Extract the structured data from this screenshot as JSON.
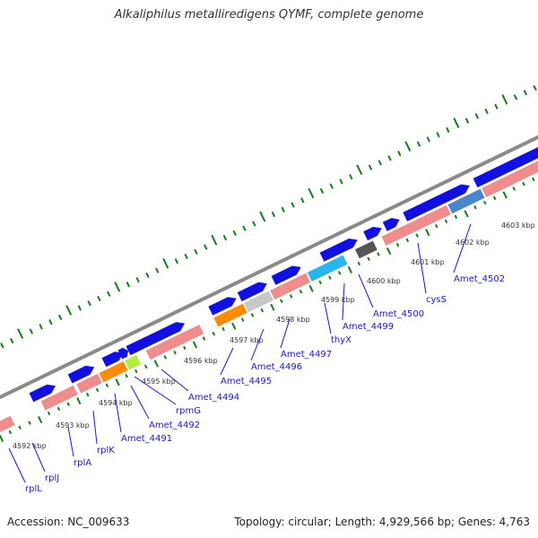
{
  "title": "Alkaliphilus metalliredigens QYMF, complete genome",
  "footer": {
    "accession": "Accession: NC_009633",
    "summary": "Topology: circular; Length: 4,929,566 bp; Genes: 4,763"
  },
  "colors": {
    "forward_gene": "#1010e0",
    "reverse_gene": "#f08c8c",
    "backbone": "#8a8a8a",
    "tick": "#1a7a1a",
    "label_line": "#1a1ab3",
    "label_text": "#1a1ab3"
  },
  "ticks": [
    "4592 kbp",
    "4593 kbp",
    "4594 kbp",
    "4595 kbp",
    "4596 kbp",
    "4597 kbp",
    "4598 kbp",
    "4599 kbp",
    "4600 kbp",
    "4601 kbp",
    "4602 kbp",
    "4603 kbp"
  ],
  "gene_labels": [
    "rplL",
    "rplJ",
    "rplA",
    "rplK",
    "Amet_4491",
    "Amet_4492",
    "rpmG",
    "Amet_4494",
    "Amet_4495",
    "Amet_4496",
    "Amet_4497",
    "thyX",
    "Amet_4499",
    "Amet_4500",
    "cysS",
    "Amet_4502"
  ]
}
